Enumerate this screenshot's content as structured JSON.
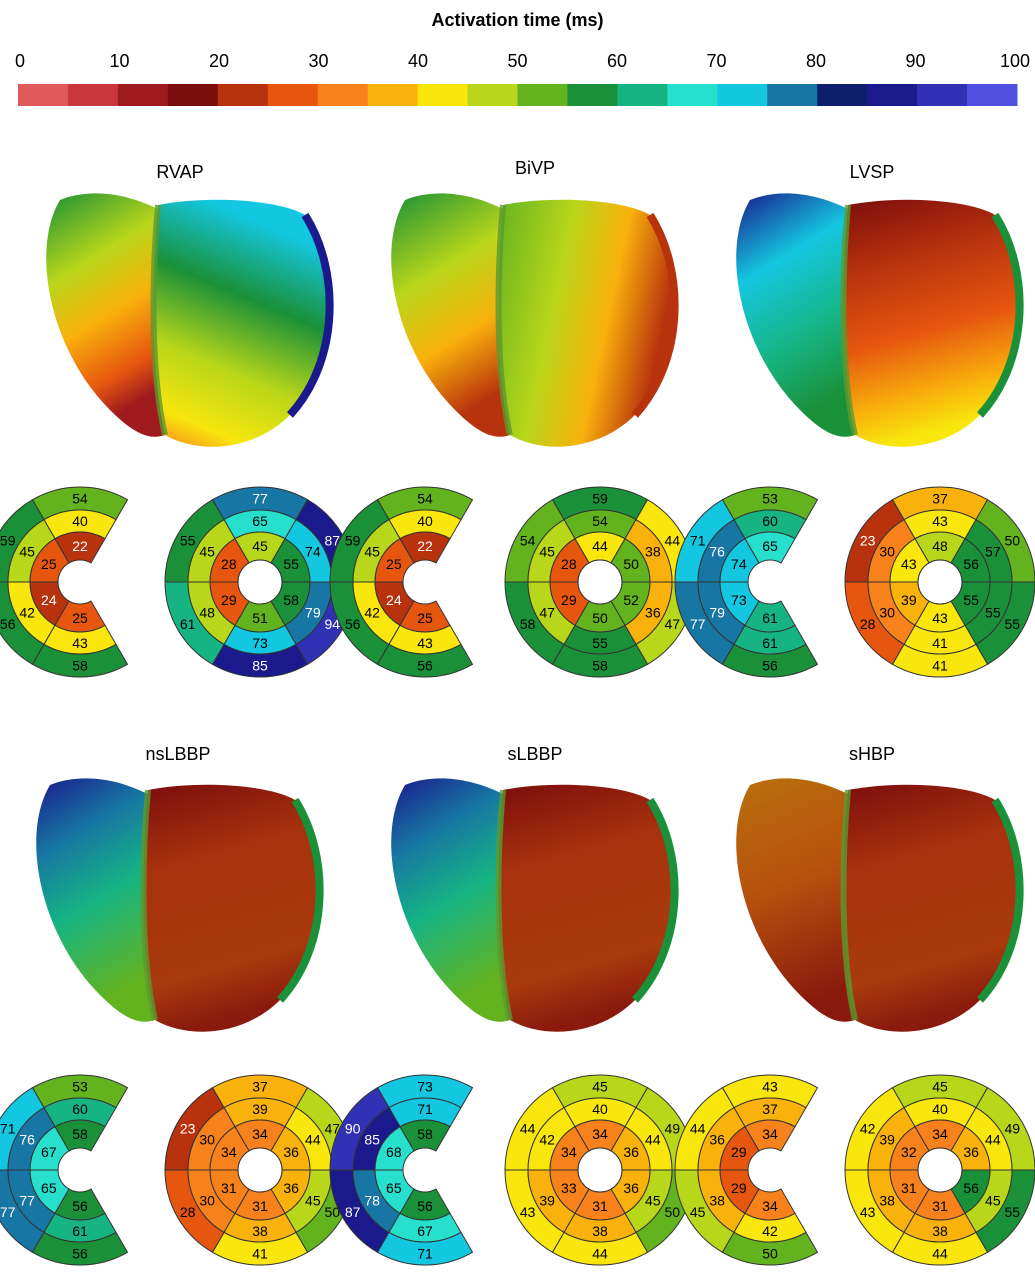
{
  "title": "Activation time (ms)",
  "colorbar": {
    "ticks": [
      "0",
      "10",
      "20",
      "30",
      "40",
      "50",
      "60",
      "70",
      "80",
      "90",
      "100"
    ],
    "colors": [
      "#e05a5a",
      "#c9373a",
      "#9e1a1d",
      "#7c0d0d",
      "#b8320d",
      "#e6560f",
      "#f7821b",
      "#f9b10c",
      "#f8e60d",
      "#b8d61a",
      "#63b31f",
      "#1a9038",
      "#16b483",
      "#26dfcc",
      "#14c7e0",
      "#1776a3",
      "#0d1e6e",
      "#1a1a8c",
      "#3131b5",
      "#5050e0"
    ]
  },
  "panels": [
    {
      "label": "RVAP",
      "rv": {
        "basal": [
          "54",
          "59",
          "56",
          "58"
        ],
        "mid": [
          "40",
          "45",
          "42",
          "43"
        ],
        "apical": [
          "22",
          "25",
          "24",
          "25"
        ]
      },
      "lv": {
        "basal": [
          "77",
          "87",
          "94",
          "85",
          "61",
          "55"
        ],
        "mid": [
          "65",
          "74",
          "79",
          "73",
          "48",
          "45"
        ],
        "apical": [
          "45",
          "55",
          "58",
          "51",
          "29",
          "28"
        ]
      }
    },
    {
      "label": "BiVP",
      "rv": {
        "basal": [
          "54",
          "59",
          "56",
          "56"
        ],
        "mid": [
          "40",
          "45",
          "42",
          "43"
        ],
        "apical": [
          "22",
          "25",
          "24",
          "25"
        ]
      },
      "lv": {
        "basal": [
          "59",
          "44",
          "47",
          "58",
          "58",
          "54"
        ],
        "mid": [
          "54",
          "38",
          "36",
          "55",
          "47",
          "45"
        ],
        "apical": [
          "44",
          "50",
          "52",
          "50",
          "29",
          "28"
        ]
      }
    },
    {
      "label": "LVSP",
      "rv": {
        "basal": [
          "53",
          "71",
          "77",
          "56"
        ],
        "mid": [
          "60",
          "76",
          "79",
          "61"
        ],
        "apical": [
          "65",
          "74",
          "73",
          "61"
        ]
      },
      "lv": {
        "basal": [
          "37",
          "50",
          "55",
          "41",
          "28",
          "23"
        ],
        "mid": [
          "43",
          "57",
          "55",
          "41",
          "30",
          "30"
        ],
        "apical": [
          "48",
          "56",
          "55",
          "43",
          "39",
          "43"
        ]
      }
    },
    {
      "label": "nsLBBP",
      "rv": {
        "basal": [
          "53",
          "71",
          "77",
          "56"
        ],
        "mid": [
          "60",
          "76",
          "77",
          "61"
        ],
        "apical": [
          "58",
          "67",
          "65",
          "56"
        ]
      },
      "lv": {
        "basal": [
          "37",
          "47",
          "50",
          "41",
          "28",
          "23"
        ],
        "mid": [
          "39",
          "44",
          "45",
          "38",
          "30",
          "30"
        ],
        "apical": [
          "34",
          "36",
          "36",
          "31",
          "31",
          "34"
        ]
      }
    },
    {
      "label": "sLBBP",
      "rv": {
        "basal": [
          "73",
          "90",
          "87",
          "71"
        ],
        "mid": [
          "71",
          "85",
          "78",
          "67"
        ],
        "apical": [
          "58",
          "68",
          "65",
          "56"
        ]
      },
      "lv": {
        "basal": [
          "45",
          "49",
          "50",
          "44",
          "43",
          "44"
        ],
        "mid": [
          "40",
          "44",
          "45",
          "38",
          "39",
          "42"
        ],
        "apical": [
          "34",
          "36",
          "36",
          "31",
          "33",
          "34"
        ]
      }
    },
    {
      "label": "sHBP",
      "rv": {
        "basal": [
          "43",
          "44",
          "45",
          "50"
        ],
        "mid": [
          "37",
          "36",
          "38",
          "42"
        ],
        "apical": [
          "34",
          "29",
          "29",
          "34"
        ]
      },
      "lv": {
        "basal": [
          "45",
          "49",
          "55",
          "44",
          "43",
          "42"
        ],
        "mid": [
          "40",
          "44",
          "45",
          "38",
          "38",
          "39"
        ],
        "apical": [
          "34",
          "36",
          "56",
          "31",
          "31",
          "32"
        ]
      }
    }
  ]
}
